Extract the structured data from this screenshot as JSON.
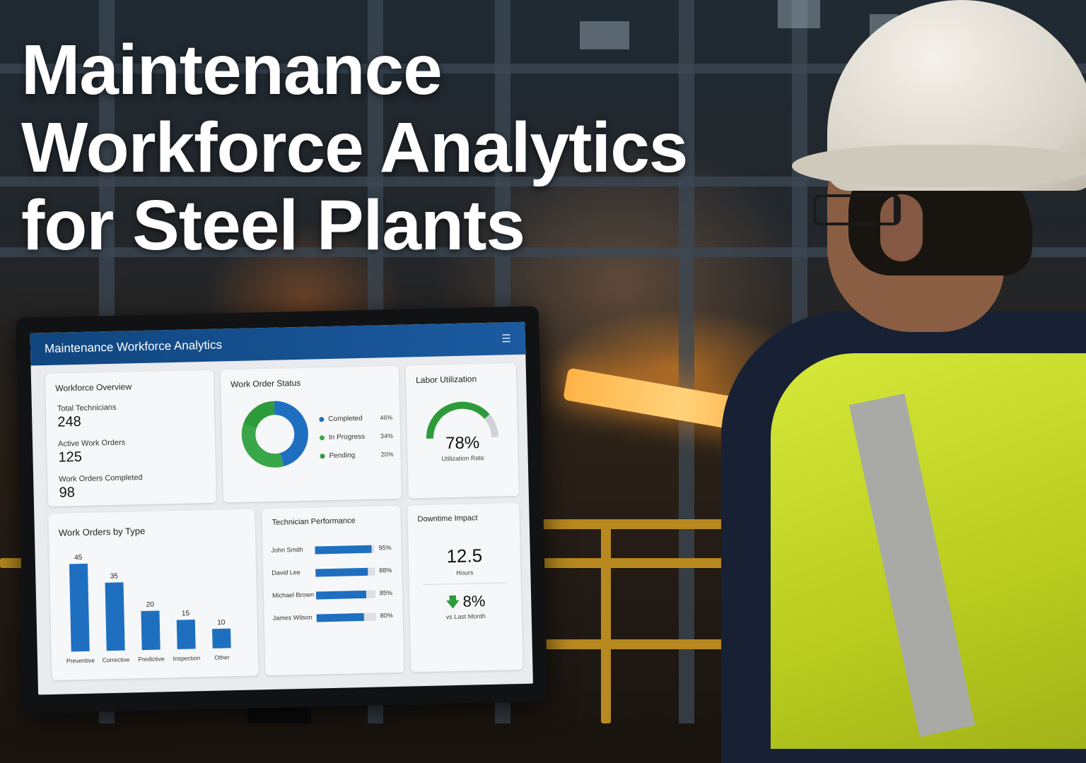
{
  "headline": {
    "line1": "Maintenance",
    "line2": "Workforce Analytics",
    "line3": "for Steel Plants"
  },
  "dashboard": {
    "title": "Maintenance Workforce Analytics",
    "menu_icon": "hamburger-menu-icon",
    "overview": {
      "title": "Workforce Overview",
      "stats": [
        {
          "label": "Total Technicians",
          "value": "248"
        },
        {
          "label": "Active Work Orders",
          "value": "125"
        },
        {
          "label": "Work Orders Completed",
          "value": "98"
        }
      ]
    },
    "status": {
      "title": "Work Order Status",
      "items": [
        {
          "label": "Completed",
          "pct": "46%",
          "color": "#1f6fc1",
          "fraction": 0.46
        },
        {
          "label": "In Progress",
          "pct": "34%",
          "color": "#3aa64a",
          "fraction": 0.34
        },
        {
          "label": "Pending",
          "pct": "20%",
          "color": "#2e9b3a",
          "fraction": 0.2
        }
      ]
    },
    "utilization": {
      "title": "Labor Utilization",
      "value": "78%",
      "fraction": 0.78,
      "label": "Utilization Rate",
      "color": "#2e9b3a"
    },
    "techs": {
      "title": "Technician Performance",
      "rows": [
        {
          "name": "John Smith",
          "pct": "95%",
          "fraction": 0.95
        },
        {
          "name": "David Lee",
          "pct": "88%",
          "fraction": 0.88
        },
        {
          "name": "Michael Brown",
          "pct": "85%",
          "fraction": 0.85
        },
        {
          "name": "James Wilson",
          "pct": "80%",
          "fraction": 0.8
        }
      ]
    },
    "downtime": {
      "title": "Downtime Impact",
      "value": "12.5",
      "unit": "Hours",
      "change": "8%",
      "change_direction": "down",
      "change_label": "vs Last Month",
      "arrow_icon": "arrow-down-icon"
    }
  },
  "chart_data": {
    "type": "bar",
    "title": "Work Orders by Type",
    "categories": [
      "Preventive",
      "Corrective",
      "Predictive",
      "Inspection",
      "Other"
    ],
    "values": [
      45,
      35,
      20,
      15,
      10
    ],
    "ylim": [
      0,
      45
    ],
    "color": "#1f6fc1"
  }
}
